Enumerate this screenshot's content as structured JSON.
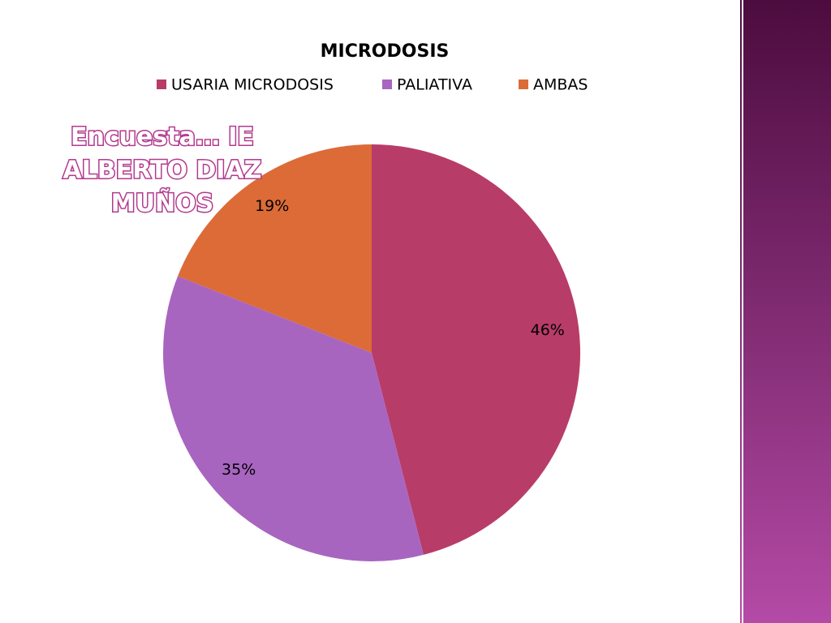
{
  "chart_data": {
    "type": "pie",
    "title": "MICRODOSIS",
    "categories": [
      "USARIA MICRODOSIS",
      "PALIATIVA",
      "AMBAS"
    ],
    "values": [
      46,
      35,
      19
    ],
    "value_labels": [
      "46%",
      "35%",
      "19%"
    ],
    "colors": [
      "#b83c68",
      "#a865c0",
      "#dc6b38"
    ],
    "legend": "top",
    "annotation": [
      "Encuesta… IE",
      "ALBERTO DIAZ",
      "MUÑOS"
    ]
  }
}
